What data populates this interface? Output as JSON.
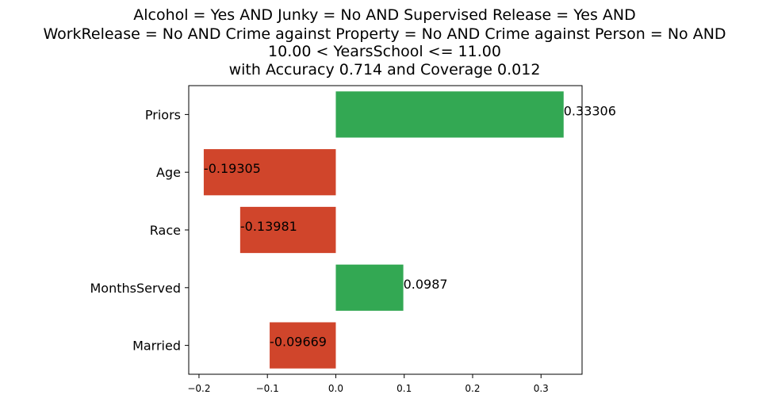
{
  "chart_data": {
    "type": "bar",
    "orientation": "horizontal",
    "title_lines": [
      "Alcohol = Yes AND Junky = No AND Supervised Release = Yes AND",
      "WorkRelease = No AND Crime against Property = No AND Crime against Person = No AND",
      "10.00 < YearsSchool <= 11.00",
      "with Accuracy 0.714 and Coverage 0.012"
    ],
    "categories": [
      "Priors",
      "Age",
      "Race",
      "MonthsServed",
      "Married"
    ],
    "values": [
      0.33306,
      -0.19305,
      -0.13981,
      0.0987,
      -0.09669
    ],
    "value_labels": [
      "0.33306",
      "-0.19305",
      "-0.13981",
      "0.0987",
      "-0.09669"
    ],
    "xlim": [
      -0.215,
      0.36
    ],
    "xticks": [
      -0.2,
      -0.1,
      0.0,
      0.1,
      0.2,
      0.3
    ],
    "xtick_labels": [
      "−0.2",
      "−0.1",
      "0.0",
      "0.1",
      "0.2",
      "0.3"
    ],
    "xlabel": "",
    "ylabel": "",
    "grid": false,
    "colors": {
      "positive": "#33a853",
      "negative": "#d0452b"
    }
  }
}
